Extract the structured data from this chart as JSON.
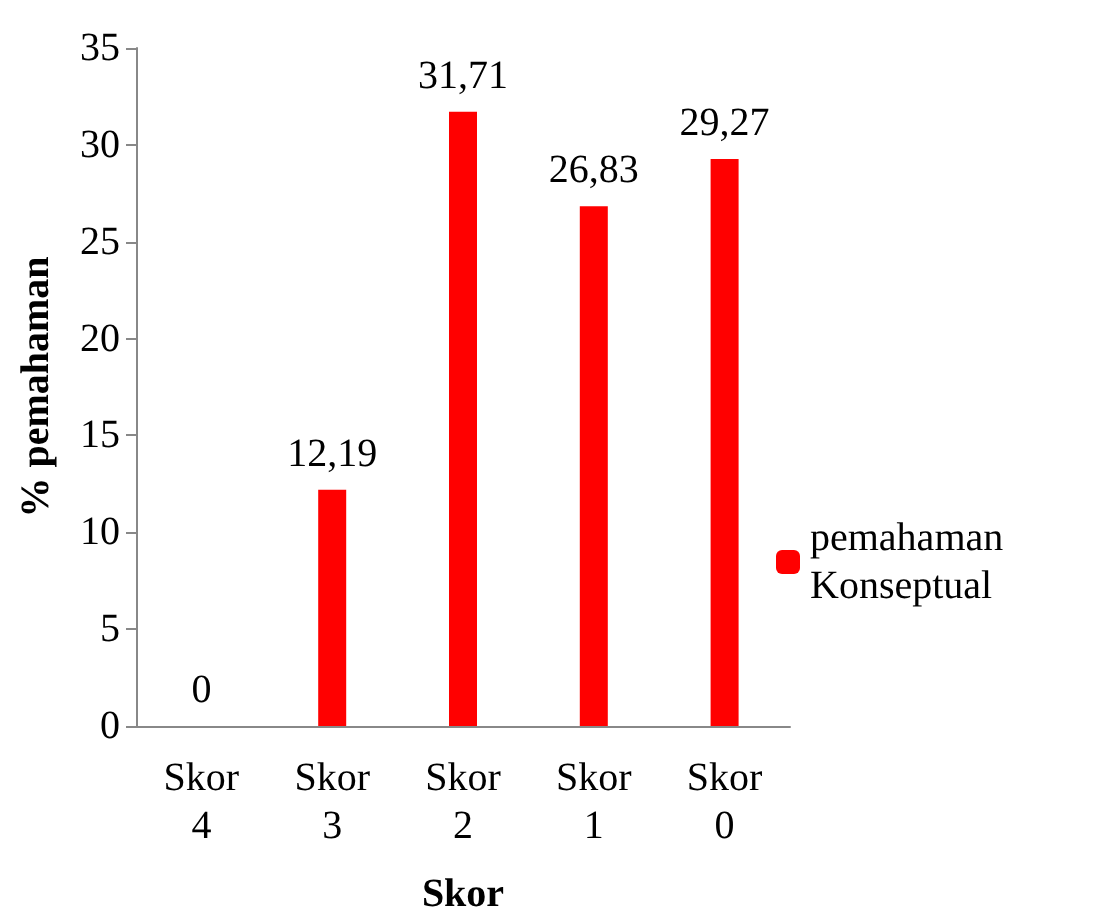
{
  "chart_data": {
    "type": "bar",
    "xlabel": "Skor",
    "ylabel": "% pemahaman",
    "categories": [
      "Skor 4",
      "Skor 3",
      "Skor 2",
      "Skor 1",
      "Skor 0"
    ],
    "series": [
      {
        "name": "pemahaman Konseptual",
        "color": "#ff0000",
        "values": [
          0,
          12.19,
          31.71,
          26.83,
          29.27
        ],
        "value_labels": [
          "0",
          "12,19",
          "31,71",
          "26,83",
          "29,27"
        ]
      }
    ],
    "ylim": [
      0,
      35
    ],
    "yticks": [
      0,
      5,
      10,
      15,
      20,
      25,
      30,
      35
    ],
    "grid": false,
    "legend": "right"
  }
}
